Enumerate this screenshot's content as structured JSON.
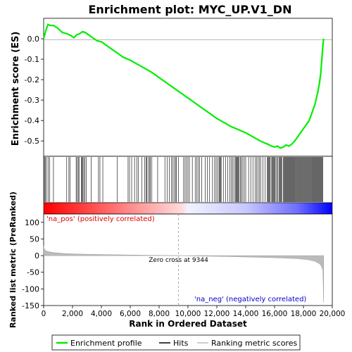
{
  "chart_data": {
    "type": "line",
    "title": "Enrichment plot: MYC_UP.V1_DN",
    "xlabel": "Rank in Ordered Dataset",
    "panels": {
      "es": {
        "ylabel": "Enrichment score (ES)",
        "ylim": [
          -0.575,
          0.1
        ],
        "yticks": [
          -0.5,
          -0.4,
          -0.3,
          -0.2,
          -0.1,
          0.0
        ],
        "ytick_labels": [
          "-0.5",
          "-0.4",
          "-0.3",
          "-0.2",
          "-0.1",
          "0.0"
        ],
        "series": [
          {
            "name": "Enrichment profile",
            "color": "#00ee00",
            "x": [
              0,
              150,
              300,
              450,
              700,
              1000,
              1300,
              1600,
              1900,
              2100,
              2300,
              2500,
              2700,
              2900,
              3100,
              3400,
              3700,
              4000,
              4500,
              5000,
              5500,
              6000,
              6500,
              7000,
              7500,
              8000,
              8500,
              9000,
              9500,
              10000,
              10500,
              11000,
              11500,
              12000,
              12500,
              13000,
              13500,
              14000,
              14500,
              15000,
              15500,
              15800,
              16000,
              16200,
              16400,
              16600,
              16800,
              17000,
              17200,
              17400,
              17600,
              17800,
              18000,
              18200,
              18400,
              18600,
              18800,
              19000,
              19100,
              19200,
              19300,
              19350,
              19400
            ],
            "y": [
              0.0,
              0.04,
              0.07,
              0.065,
              0.065,
              0.05,
              0.03,
              0.025,
              0.015,
              0.005,
              0.02,
              0.025,
              0.035,
              0.03,
              0.02,
              0.005,
              -0.01,
              -0.015,
              -0.04,
              -0.065,
              -0.09,
              -0.105,
              -0.125,
              -0.145,
              -0.165,
              -0.19,
              -0.215,
              -0.24,
              -0.265,
              -0.29,
              -0.315,
              -0.34,
              -0.365,
              -0.39,
              -0.41,
              -0.43,
              -0.445,
              -0.46,
              -0.48,
              -0.5,
              -0.515,
              -0.525,
              -0.53,
              -0.525,
              -0.535,
              -0.53,
              -0.52,
              -0.525,
              -0.515,
              -0.5,
              -0.48,
              -0.46,
              -0.44,
              -0.42,
              -0.4,
              -0.36,
              -0.32,
              -0.26,
              -0.22,
              -0.17,
              -0.08,
              -0.03,
              0.0
            ]
          }
        ]
      },
      "hits": {
        "series_name": "Hits",
        "color": "#000000",
        "positions": [
          10,
          60,
          130,
          200,
          310,
          420,
          680,
          1600,
          1750,
          1820,
          2250,
          2320,
          2400,
          2450,
          2600,
          2660,
          2720,
          2780,
          2850,
          2950,
          3300,
          3800,
          3900,
          4100,
          5100,
          5850,
          5950,
          6100,
          6300,
          6450,
          6550,
          6800,
          7000,
          7100,
          7150,
          7250,
          7350,
          7400,
          7500,
          7900,
          8400,
          8550,
          8700,
          8850,
          8950,
          9050,
          9150,
          9200,
          9350,
          9700,
          9800,
          9900,
          10000,
          10100,
          10300,
          10500,
          10600,
          10700,
          10800,
          10950,
          11200,
          11350,
          11500,
          11700,
          11850,
          11950,
          12050,
          12150,
          12200,
          12250,
          12300,
          12450,
          12600,
          12750,
          12900,
          13000,
          13100,
          13200,
          13300,
          13350,
          13400,
          13450,
          13500,
          13550,
          13650,
          13700,
          13800,
          13900,
          14000,
          14200,
          14350,
          14500,
          14650,
          14750,
          14850,
          14950,
          15050,
          15200,
          15350,
          15500,
          15550,
          15600,
          15650,
          15700,
          15800,
          15850,
          15900,
          15950,
          16000,
          16050,
          16150,
          16200,
          16300,
          16350,
          16400,
          16450,
          16500,
          16600,
          16650,
          16700,
          16750,
          16800,
          16850,
          16900,
          16950,
          17000,
          17050,
          17100,
          17150,
          17200,
          17250,
          17300,
          17350,
          17400,
          17450,
          17500,
          17550,
          17600,
          17650,
          17700,
          17750,
          17800,
          17850,
          17900,
          17950,
          18000,
          18050,
          18100,
          18150,
          18200,
          18250,
          18300,
          18350,
          18400,
          18450,
          18500,
          18550,
          18600,
          18650,
          18700,
          18750,
          18800,
          18850,
          18900,
          18950,
          19000,
          19050,
          19100,
          19150,
          19200,
          19250,
          19300,
          19350
        ]
      },
      "ranking": {
        "series_name": "Ranking metric scores",
        "ylabel": "Ranked list metric (PreRanked)",
        "ylim": [
          -150,
          125
        ],
        "yticks": [
          -150,
          -100,
          -50,
          0,
          50,
          100
        ],
        "ytick_labels": [
          "-150",
          "-100",
          "-50",
          "0",
          "50",
          "100"
        ],
        "x": [
          0,
          30,
          100,
          300,
          700,
          1500,
          3000,
          5000,
          7000,
          9344,
          11000,
          13000,
          15000,
          16500,
          17500,
          18300,
          18800,
          19100,
          19250,
          19350,
          19400
        ],
        "y": [
          30,
          22,
          16,
          12,
          9,
          6,
          4,
          2.5,
          1.2,
          0,
          -1.5,
          -3,
          -5,
          -7,
          -9,
          -12,
          -17,
          -24,
          -32,
          -45,
          -140
        ]
      }
    },
    "xlim": [
      0,
      20000
    ],
    "xticks": [
      0,
      2000,
      4000,
      6000,
      8000,
      10000,
      12000,
      14000,
      16000,
      18000,
      20000
    ],
    "xtick_labels": [
      "0",
      "2,000",
      "4,000",
      "6,000",
      "8,000",
      "10,000",
      "12,000",
      "14,000",
      "16,000",
      "18,000",
      "20,000"
    ],
    "zero_cross": {
      "rank": 9344,
      "label": "Zero cross at 9344"
    },
    "annotations": {
      "pos_label": "'na_pos' (positively correlated)",
      "neg_label": "'na_neg' (negatively correlated)"
    },
    "legend": {
      "placement": "bottom",
      "entries": [
        "Enrichment profile",
        "Hits",
        "Ranking metric scores"
      ]
    },
    "colors": {
      "es_line": "#00ee00",
      "pos_band": "#ff0000",
      "neg_band": "#0000ff",
      "zero_line": "#aaaaaa"
    },
    "n_genes": 19400,
    "grid": false
  }
}
